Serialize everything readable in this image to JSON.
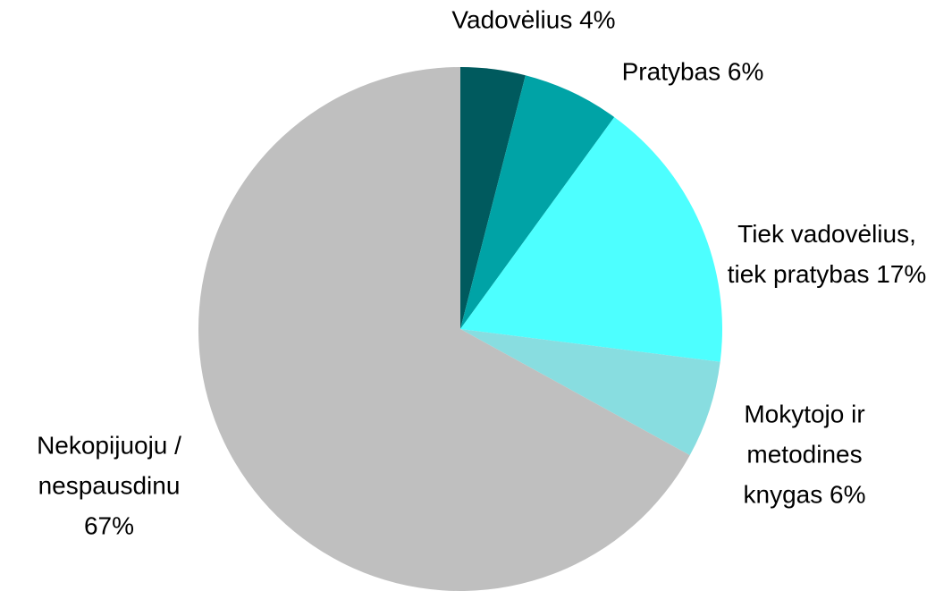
{
  "chart_data": {
    "type": "pie",
    "categories": [
      "Vadovėlius",
      "Pratybas",
      "Tiek vadovėlius, tiek pratybas",
      "Mokytojo ir metodines knygas",
      "Nekopijuoju / nespausdinu"
    ],
    "values": [
      4,
      6,
      17,
      6,
      67
    ],
    "value_labels": [
      "4%",
      "6%",
      "17%",
      "6%",
      "67%"
    ],
    "colors": [
      "#005a5e",
      "#00a3a6",
      "#4dffff",
      "#88dde0",
      "#bfbfbf"
    ]
  }
}
